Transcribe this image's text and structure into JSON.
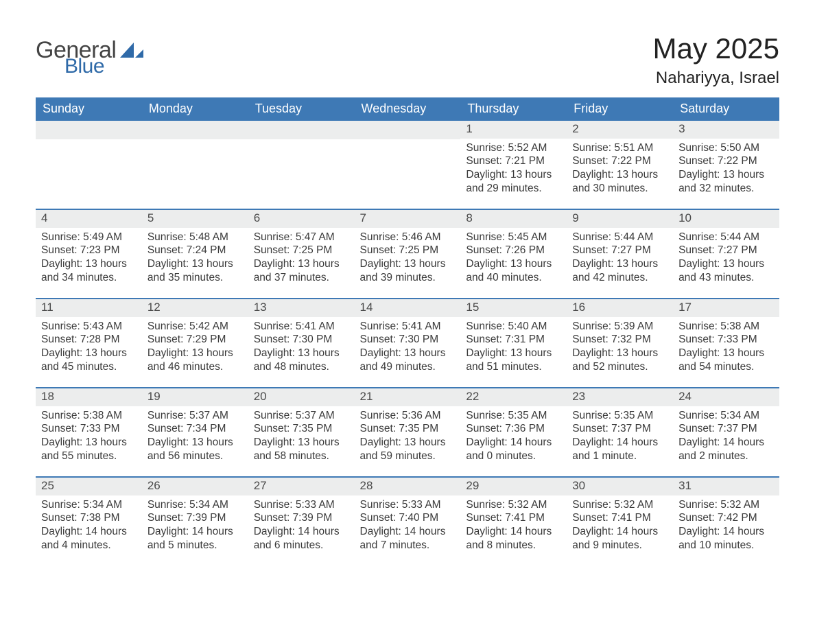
{
  "brand": {
    "word1": "General",
    "word2": "Blue"
  },
  "title": {
    "month": "May 2025",
    "location": "Nahariyya, Israel"
  },
  "colors": {
    "header_blue": "#3e79b5",
    "row_grey": "#eceded",
    "text": "#2e2e2e",
    "brand_blue": "#2f6aa8"
  },
  "weekdays": [
    "Sunday",
    "Monday",
    "Tuesday",
    "Wednesday",
    "Thursday",
    "Friday",
    "Saturday"
  ],
  "layout": {
    "start_day_index": 4,
    "days_in_month": 31,
    "weeks": 5
  },
  "days": {
    "1": {
      "sunrise": "5:52 AM",
      "sunset": "7:21 PM",
      "daylight": "13 hours and 29 minutes."
    },
    "2": {
      "sunrise": "5:51 AM",
      "sunset": "7:22 PM",
      "daylight": "13 hours and 30 minutes."
    },
    "3": {
      "sunrise": "5:50 AM",
      "sunset": "7:22 PM",
      "daylight": "13 hours and 32 minutes."
    },
    "4": {
      "sunrise": "5:49 AM",
      "sunset": "7:23 PM",
      "daylight": "13 hours and 34 minutes."
    },
    "5": {
      "sunrise": "5:48 AM",
      "sunset": "7:24 PM",
      "daylight": "13 hours and 35 minutes."
    },
    "6": {
      "sunrise": "5:47 AM",
      "sunset": "7:25 PM",
      "daylight": "13 hours and 37 minutes."
    },
    "7": {
      "sunrise": "5:46 AM",
      "sunset": "7:25 PM",
      "daylight": "13 hours and 39 minutes."
    },
    "8": {
      "sunrise": "5:45 AM",
      "sunset": "7:26 PM",
      "daylight": "13 hours and 40 minutes."
    },
    "9": {
      "sunrise": "5:44 AM",
      "sunset": "7:27 PM",
      "daylight": "13 hours and 42 minutes."
    },
    "10": {
      "sunrise": "5:44 AM",
      "sunset": "7:27 PM",
      "daylight": "13 hours and 43 minutes."
    },
    "11": {
      "sunrise": "5:43 AM",
      "sunset": "7:28 PM",
      "daylight": "13 hours and 45 minutes."
    },
    "12": {
      "sunrise": "5:42 AM",
      "sunset": "7:29 PM",
      "daylight": "13 hours and 46 minutes."
    },
    "13": {
      "sunrise": "5:41 AM",
      "sunset": "7:30 PM",
      "daylight": "13 hours and 48 minutes."
    },
    "14": {
      "sunrise": "5:41 AM",
      "sunset": "7:30 PM",
      "daylight": "13 hours and 49 minutes."
    },
    "15": {
      "sunrise": "5:40 AM",
      "sunset": "7:31 PM",
      "daylight": "13 hours and 51 minutes."
    },
    "16": {
      "sunrise": "5:39 AM",
      "sunset": "7:32 PM",
      "daylight": "13 hours and 52 minutes."
    },
    "17": {
      "sunrise": "5:38 AM",
      "sunset": "7:33 PM",
      "daylight": "13 hours and 54 minutes."
    },
    "18": {
      "sunrise": "5:38 AM",
      "sunset": "7:33 PM",
      "daylight": "13 hours and 55 minutes."
    },
    "19": {
      "sunrise": "5:37 AM",
      "sunset": "7:34 PM",
      "daylight": "13 hours and 56 minutes."
    },
    "20": {
      "sunrise": "5:37 AM",
      "sunset": "7:35 PM",
      "daylight": "13 hours and 58 minutes."
    },
    "21": {
      "sunrise": "5:36 AM",
      "sunset": "7:35 PM",
      "daylight": "13 hours and 59 minutes."
    },
    "22": {
      "sunrise": "5:35 AM",
      "sunset": "7:36 PM",
      "daylight": "14 hours and 0 minutes."
    },
    "23": {
      "sunrise": "5:35 AM",
      "sunset": "7:37 PM",
      "daylight": "14 hours and 1 minute."
    },
    "24": {
      "sunrise": "5:34 AM",
      "sunset": "7:37 PM",
      "daylight": "14 hours and 2 minutes."
    },
    "25": {
      "sunrise": "5:34 AM",
      "sunset": "7:38 PM",
      "daylight": "14 hours and 4 minutes."
    },
    "26": {
      "sunrise": "5:34 AM",
      "sunset": "7:39 PM",
      "daylight": "14 hours and 5 minutes."
    },
    "27": {
      "sunrise": "5:33 AM",
      "sunset": "7:39 PM",
      "daylight": "14 hours and 6 minutes."
    },
    "28": {
      "sunrise": "5:33 AM",
      "sunset": "7:40 PM",
      "daylight": "14 hours and 7 minutes."
    },
    "29": {
      "sunrise": "5:32 AM",
      "sunset": "7:41 PM",
      "daylight": "14 hours and 8 minutes."
    },
    "30": {
      "sunrise": "5:32 AM",
      "sunset": "7:41 PM",
      "daylight": "14 hours and 9 minutes."
    },
    "31": {
      "sunrise": "5:32 AM",
      "sunset": "7:42 PM",
      "daylight": "14 hours and 10 minutes."
    }
  },
  "labels": {
    "sunrise": "Sunrise:",
    "sunset": "Sunset:",
    "daylight": "Daylight:"
  }
}
